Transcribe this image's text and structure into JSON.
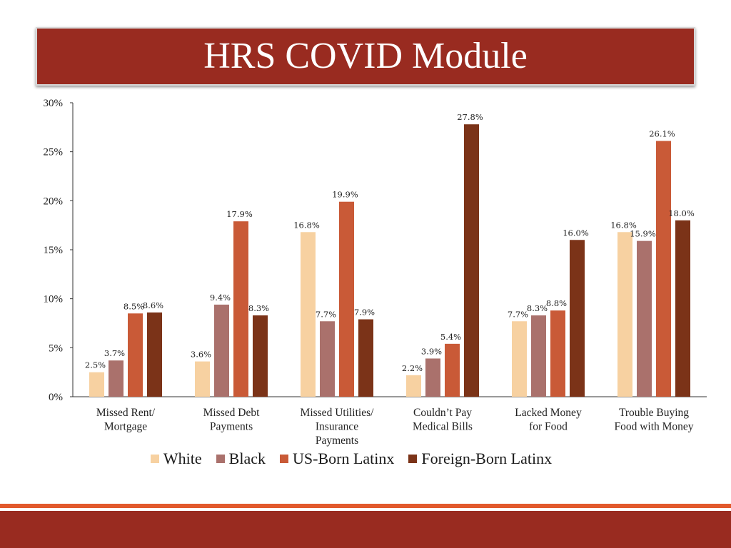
{
  "title": "HRS COVID Module",
  "colors": {
    "banner": "#992b20",
    "stripe": "#e2592c"
  },
  "chart_data": {
    "type": "bar",
    "categories": [
      [
        "Missed Rent/",
        "Mortgage"
      ],
      [
        "Missed Debt",
        "Payments"
      ],
      [
        "Missed Utilities/",
        "Insurance",
        "Payments"
      ],
      [
        "Couldn’t Pay",
        "Medical Bills"
      ],
      [
        "Lacked Money",
        "for Food"
      ],
      [
        "Trouble Buying",
        "Food with Money"
      ]
    ],
    "series": [
      {
        "name": "White",
        "color": "#f7d1a1",
        "values": [
          2.5,
          3.6,
          16.8,
          2.2,
          7.7,
          16.8
        ],
        "labels": [
          "2.5%",
          "3.6%",
          "16.8%",
          "2.2%",
          "7.7%",
          "16.8%"
        ]
      },
      {
        "name": "Black",
        "color": "#aa716c",
        "values": [
          3.7,
          9.4,
          7.7,
          3.9,
          8.3,
          15.9
        ],
        "labels": [
          "3.7%",
          "9.4%",
          "7.7%",
          "3.9%",
          "8.3%",
          "15.9%"
        ]
      },
      {
        "name": "US-Born Latinx",
        "color": "#c95a37",
        "values": [
          8.5,
          17.9,
          19.9,
          5.4,
          8.8,
          26.1
        ],
        "labels": [
          "8.5%",
          "17.9%",
          "19.9%",
          "5.4%",
          "8.8%",
          "26.1%"
        ]
      },
      {
        "name": "Foreign-Born Latinx",
        "color": "#7b3318",
        "values": [
          8.6,
          8.3,
          7.9,
          27.8,
          16.0,
          18.0
        ],
        "labels": [
          "8.6%",
          "8.3%",
          "7.9%",
          "27.8%",
          "16.0%",
          "18.0%"
        ]
      }
    ],
    "ylim": [
      0,
      30
    ],
    "yticks": [
      0,
      5,
      10,
      15,
      20,
      25,
      30
    ],
    "ytick_labels": [
      "0%",
      "5%",
      "10%",
      "15%",
      "20%",
      "25%",
      "30%"
    ],
    "grid": false,
    "legend_position": "bottom"
  }
}
